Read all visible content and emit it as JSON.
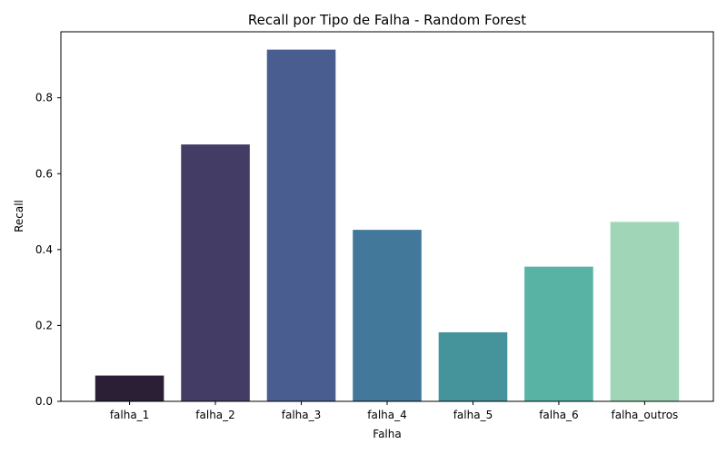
{
  "chart_data": {
    "type": "bar",
    "title": "Recall por Tipo de Falha - Random Forest",
    "xlabel": "Falha",
    "ylabel": "Recall",
    "categories": [
      "falha_1",
      "falha_2",
      "falha_3",
      "falha_4",
      "falha_5",
      "falha_6",
      "falha_outros"
    ],
    "values": [
      0.068,
      0.677,
      0.927,
      0.452,
      0.182,
      0.355,
      0.473
    ],
    "colors": [
      "#2b1f35",
      "#433d65",
      "#4a5d91",
      "#42789a",
      "#45949c",
      "#58b3a4",
      "#a1d5b7"
    ],
    "ylim": [
      0,
      0.974
    ],
    "yticks": [
      0.0,
      0.2,
      0.4,
      0.6,
      0.8
    ],
    "ytick_labels": [
      "0.0",
      "0.2",
      "0.4",
      "0.6",
      "0.8"
    ],
    "grid": false,
    "legend": "none"
  }
}
